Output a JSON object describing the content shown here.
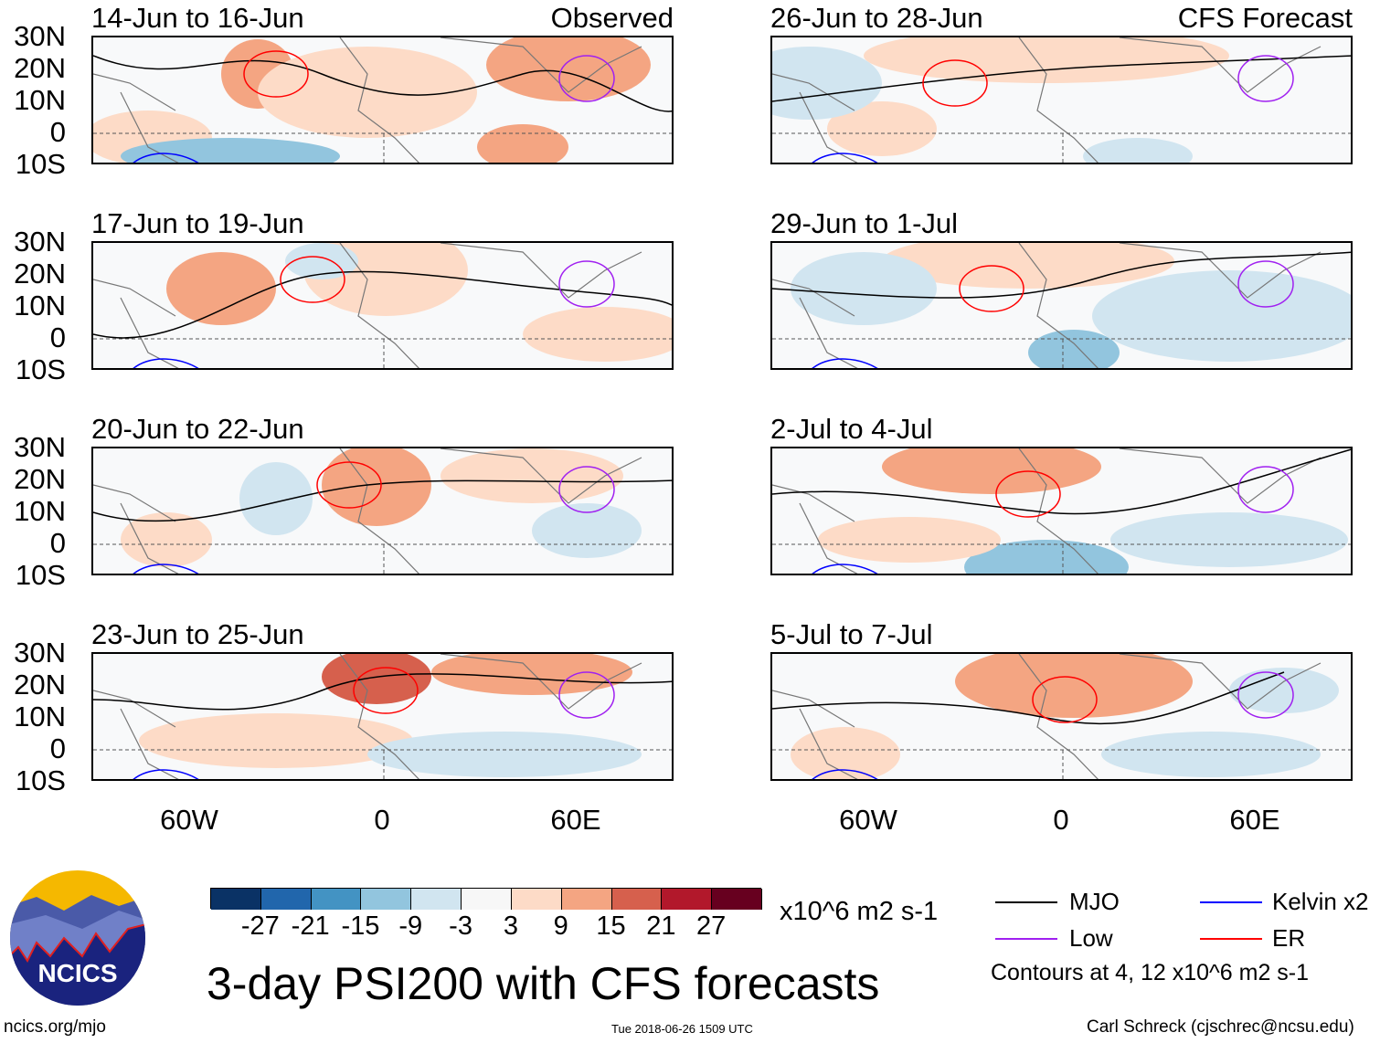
{
  "panels_left": [
    {
      "title": "14-Jun to 16-Jun",
      "label": "Observed"
    },
    {
      "title": "17-Jun to 19-Jun"
    },
    {
      "title": "20-Jun to 22-Jun"
    },
    {
      "title": "23-Jun to 25-Jun"
    }
  ],
  "panels_right": [
    {
      "title": "26-Jun to 28-Jun",
      "label": "CFS Forecast"
    },
    {
      "title": "29-Jun to 1-Jul"
    },
    {
      "title": "2-Jul to 4-Jul"
    },
    {
      "title": "5-Jul to 7-Jul"
    }
  ],
  "lat_labels": [
    "30N",
    "20N",
    "10N",
    "0",
    "10S"
  ],
  "lon_labels": [
    "60W",
    "0",
    "60E"
  ],
  "colorbar": {
    "colors": [
      "#0a3265",
      "#2166ac",
      "#4393c3",
      "#92c5de",
      "#d1e5f0",
      "#f7f7f7",
      "#fddbc7",
      "#f4a582",
      "#d6604d",
      "#b2182b",
      "#67001f"
    ],
    "labels": [
      "-27",
      "-21",
      "-15",
      "-9",
      "-3",
      "3",
      "9",
      "15",
      "21",
      "27"
    ],
    "units": "x10^6 m2 s-1"
  },
  "legend": {
    "mjo": {
      "label": "MJO",
      "color": "#000000"
    },
    "kelvin": {
      "label": "Kelvin x2",
      "color": "#0000ff"
    },
    "low": {
      "label": "Low",
      "color": "#a020f0"
    },
    "er": {
      "label": "ER",
      "color": "#ff0000"
    },
    "contours_note": "Contours at 4, 12 x10^6 m2 s-1"
  },
  "logo": {
    "text": "NCICS"
  },
  "title": "3-day PSI200 with CFS forecasts",
  "footer": {
    "url": "ncics.org/mjo",
    "timestamp": "Tue 2018-06-26 1509 UTC",
    "author": "Carl Schreck (cjschrec@ncsu.edu)"
  }
}
